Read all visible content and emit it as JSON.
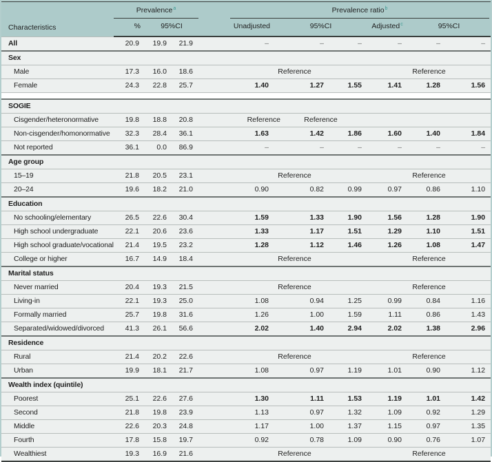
{
  "table": {
    "header": {
      "characteristics": "Characteristics",
      "prevalence_label": "Prevalence",
      "prevalence_sup": "a",
      "ratio_label": "Prevalence ratio",
      "ratio_sup": "b",
      "pct_label": "%",
      "ci_label": "95%CI",
      "unadjusted_label": "Unadjusted",
      "ci2_label": "95%CI",
      "adjusted_label": "Adjusted",
      "adjusted_sup": "c",
      "ci3_label": "95%CI"
    },
    "reference_label": "Reference",
    "dash": "–",
    "colors": {
      "header_teal": "#adcbca",
      "row_bg": "#edf0ef",
      "footnote_teal": "#3d9a94",
      "dark_rule": "#3a3f3d",
      "section_rule": "#6e7472",
      "row_rule": "#b7bdbb",
      "outer_border": "#b3cecd"
    },
    "rows": [
      {
        "type": "data",
        "label": "All",
        "bold_label": true,
        "prev": [
          "20.9",
          "19.9",
          "21.9"
        ],
        "pr": [
          "–",
          "–",
          "–",
          "–",
          "–",
          "–"
        ],
        "bold_pr": false
      },
      {
        "type": "section",
        "label": "Sex"
      },
      {
        "type": "data",
        "label": "Male",
        "prev": [
          "17.3",
          "16.0",
          "18.6"
        ],
        "ref": "both"
      },
      {
        "type": "data",
        "label": "Female",
        "prev": [
          "24.3",
          "22.8",
          "25.7"
        ],
        "pr": [
          "1.40",
          "1.27",
          "1.55",
          "1.41",
          "1.28",
          "1.56"
        ],
        "bold_pr": true
      },
      {
        "type": "spacer"
      },
      {
        "type": "section",
        "label": "SOGIE"
      },
      {
        "type": "data",
        "label": "Cisgender/heteronormative",
        "prev": [
          "19.8",
          "18.8",
          "20.8"
        ],
        "ref": "split"
      },
      {
        "type": "data",
        "label": "Non-cisgender/homonormative",
        "prev": [
          "32.3",
          "28.4",
          "36.1"
        ],
        "pr": [
          "1.63",
          "1.42",
          "1.86",
          "1.60",
          "1.40",
          "1.84"
        ],
        "bold_pr": true
      },
      {
        "type": "data",
        "label": "Not reported",
        "prev": [
          "36.1",
          "0.0",
          "86.9"
        ],
        "pr": [
          "–",
          "–",
          "–",
          "–",
          "–",
          "–"
        ],
        "bold_pr": false
      },
      {
        "type": "section",
        "label": "Age group"
      },
      {
        "type": "data",
        "label": "15–19",
        "prev": [
          "21.8",
          "20.5",
          "23.1"
        ],
        "ref": "both"
      },
      {
        "type": "data",
        "label": "20–24",
        "prev": [
          "19.6",
          "18.2",
          "21.0"
        ],
        "pr": [
          "0.90",
          "0.82",
          "0.99",
          "0.97",
          "0.86",
          "1.10"
        ],
        "bold_pr": false
      },
      {
        "type": "section",
        "label": "Education"
      },
      {
        "type": "data",
        "label": "No schooling/elementary",
        "prev": [
          "26.5",
          "22.6",
          "30.4"
        ],
        "pr": [
          "1.59",
          "1.33",
          "1.90",
          "1.56",
          "1.28",
          "1.90"
        ],
        "bold_pr": true
      },
      {
        "type": "data",
        "label": "High school undergraduate",
        "prev": [
          "22.1",
          "20.6",
          "23.6"
        ],
        "pr": [
          "1.33",
          "1.17",
          "1.51",
          "1.29",
          "1.10",
          "1.51"
        ],
        "bold_pr": true
      },
      {
        "type": "data",
        "label": "High school graduate/vocational",
        "prev": [
          "21.4",
          "19.5",
          "23.2"
        ],
        "pr": [
          "1.28",
          "1.12",
          "1.46",
          "1.26",
          "1.08",
          "1.47"
        ],
        "bold_pr": true
      },
      {
        "type": "data",
        "label": "College or higher",
        "prev": [
          "16.7",
          "14.9",
          "18.4"
        ],
        "ref": "both"
      },
      {
        "type": "section",
        "label": "Marital status"
      },
      {
        "type": "data",
        "label": "Never married",
        "prev": [
          "20.4",
          "19.3",
          "21.5"
        ],
        "ref": "both"
      },
      {
        "type": "data",
        "label": "Living-in",
        "prev": [
          "22.1",
          "19.3",
          "25.0"
        ],
        "pr": [
          "1.08",
          "0.94",
          "1.25",
          "0.99",
          "0.84",
          "1.16"
        ],
        "bold_pr": false
      },
      {
        "type": "data",
        "label": "Formally married",
        "prev": [
          "25.7",
          "19.8",
          "31.6"
        ],
        "pr": [
          "1.26",
          "1.00",
          "1.59",
          "1.11",
          "0.86",
          "1.43"
        ],
        "bold_pr": false
      },
      {
        "type": "data",
        "label": "Separated/widowed/divorced",
        "prev": [
          "41.3",
          "26.1",
          "56.6"
        ],
        "pr": [
          "2.02",
          "1.40",
          "2.94",
          "2.02",
          "1.38",
          "2.96"
        ],
        "bold_pr": true
      },
      {
        "type": "section",
        "label": "Residence"
      },
      {
        "type": "data",
        "label": "Rural",
        "prev": [
          "21.4",
          "20.2",
          "22.6"
        ],
        "ref": "both"
      },
      {
        "type": "data",
        "label": "Urban",
        "prev": [
          "19.9",
          "18.1",
          "21.7"
        ],
        "pr": [
          "1.08",
          "0.97",
          "1.19",
          "1.01",
          "0.90",
          "1.12"
        ],
        "bold_pr": false
      },
      {
        "type": "section",
        "label": "Wealth index (quintile)"
      },
      {
        "type": "data",
        "label": "Poorest",
        "prev": [
          "25.1",
          "22.6",
          "27.6"
        ],
        "pr": [
          "1.30",
          "1.11",
          "1.53",
          "1.19",
          "1.01",
          "1.42"
        ],
        "bold_pr": true
      },
      {
        "type": "data",
        "label": "Second",
        "prev": [
          "21.8",
          "19.8",
          "23.9"
        ],
        "pr": [
          "1.13",
          "0.97",
          "1.32",
          "1.09",
          "0.92",
          "1.29"
        ],
        "bold_pr": false
      },
      {
        "type": "data",
        "label": "Middle",
        "prev": [
          "22.6",
          "20.3",
          "24.8"
        ],
        "pr": [
          "1.17",
          "1.00",
          "1.37",
          "1.15",
          "0.97",
          "1.35"
        ],
        "bold_pr": false
      },
      {
        "type": "data",
        "label": "Fourth",
        "prev": [
          "17.8",
          "15.8",
          "19.7"
        ],
        "pr": [
          "0.92",
          "0.78",
          "1.09",
          "0.90",
          "0.76",
          "1.07"
        ],
        "bold_pr": false
      },
      {
        "type": "data",
        "label": "Wealthiest",
        "prev": [
          "19.3",
          "16.9",
          "21.6"
        ],
        "ref": "both"
      }
    ]
  }
}
